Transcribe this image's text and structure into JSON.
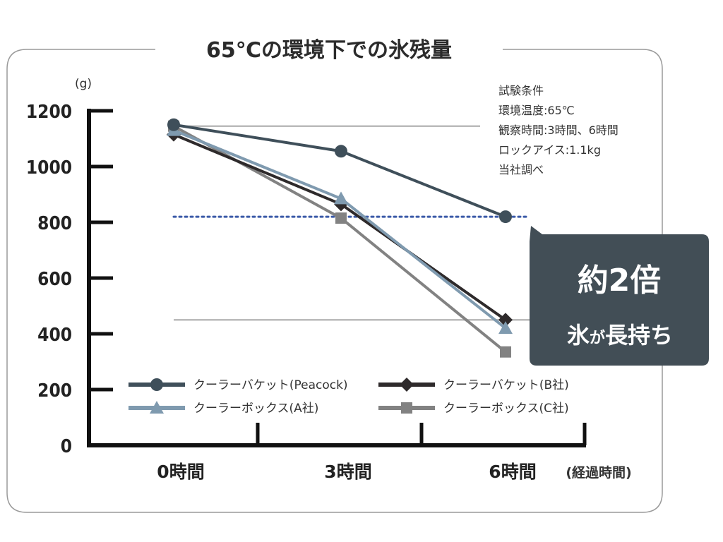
{
  "chart_data": {
    "type": "line",
    "title": "65℃の環境下での氷残量",
    "ylabel": "(g)",
    "xlabel": "(経過時間)",
    "categories": [
      "0時間",
      "3時間",
      "6時間"
    ],
    "ylim": [
      0,
      1200
    ],
    "yticks": [
      0,
      200,
      400,
      600,
      800,
      1000,
      1200
    ],
    "series": [
      {
        "name": "クーラーバケット(Peacock)",
        "marker": "circle",
        "color": "#3f4f5a",
        "values": [
          1150,
          1055,
          820
        ]
      },
      {
        "name": "クーラーボックス(A社)",
        "marker": "triangle",
        "color": "#7f9aaf",
        "values": [
          1130,
          885,
          420
        ]
      },
      {
        "name": "クーラーバケット(B社)",
        "marker": "diamond",
        "color": "#2e2a2b",
        "values": [
          1115,
          865,
          450
        ]
      },
      {
        "name": "クーラーボックス(C社)",
        "marker": "square",
        "color": "#828282",
        "values": [
          1145,
          815,
          335
        ]
      }
    ],
    "reference_lines": [
      {
        "value": 1145,
        "style": "solid",
        "color": "#bbbbbb"
      },
      {
        "value": 820,
        "style": "dotted",
        "color": "#3b5aa8"
      },
      {
        "value": 450,
        "style": "solid",
        "color": "#bbbbbb"
      }
    ],
    "conditions": [
      "試験条件",
      "環境温度:65℃",
      "観察時間:3時間、6時間",
      "ロックアイス:1.1kg",
      "当社調べ"
    ],
    "callout": {
      "line1": "約2倍",
      "line2a": "氷",
      "line2b": "が",
      "line2c": "長持ち",
      "color": "#424e56"
    },
    "grid": false,
    "legend_position": "bottom-inside"
  }
}
